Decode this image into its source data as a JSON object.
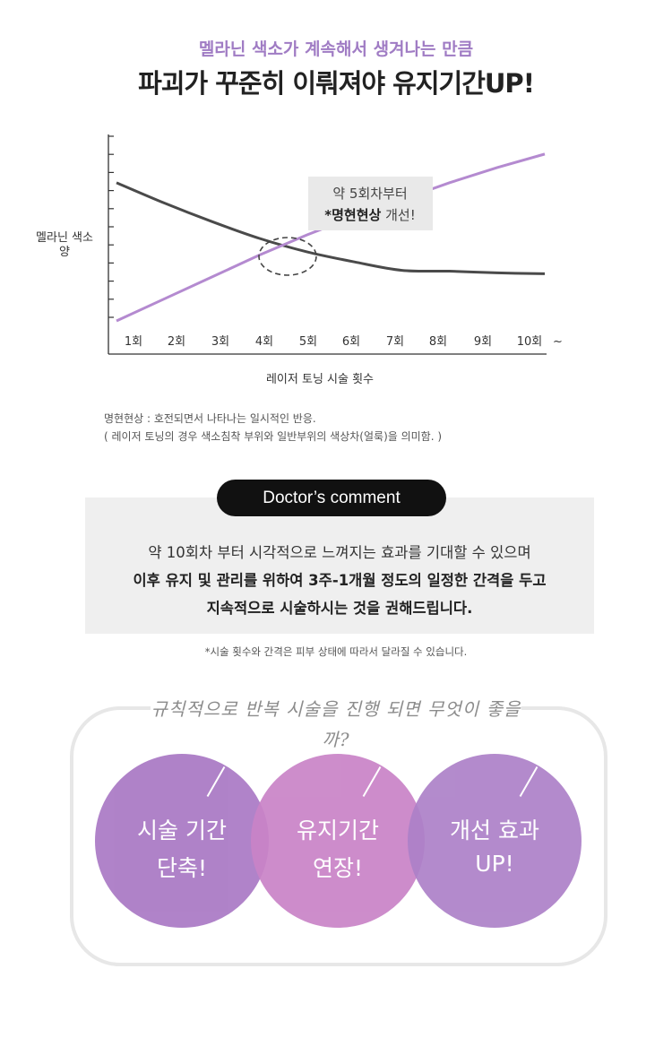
{
  "header": {
    "subtitle": "멜라닌 색소가 계속해서 생겨나는 만큼",
    "title": "파괴가 꾸준히 이뤄져야 유지기간UP!"
  },
  "chart_data": {
    "type": "line",
    "x": [
      "1회",
      "2회",
      "3회",
      "4회",
      "5회",
      "6회",
      "7회",
      "8회",
      "9회",
      "10회"
    ],
    "x_suffix": "~",
    "xlabel": "레이저 토닝 시술 횟수",
    "ylabel_line1": "멜라닌 색소",
    "ylabel_line2": "양",
    "y_ticks": 11,
    "ylim": [
      0,
      10
    ],
    "series": [
      {
        "color": "#4a4a4a",
        "values": [
          8.2,
          7.0,
          5.9,
          4.9,
          4.1,
          3.5,
          3.0,
          2.95,
          2.85,
          2.8
        ]
      },
      {
        "color": "#b48ad0",
        "values": [
          0.0,
          1.3,
          2.6,
          3.9,
          5.1,
          6.2,
          7.2,
          8.2,
          9.1,
          9.9
        ]
      }
    ],
    "annotation": {
      "line1": "약 5회차부터",
      "line2_bold": "*명현현상",
      "line2_rest": " 개선!"
    }
  },
  "footnote": {
    "line1": "명현현상 : 호전되면서 나타나는 일시적인 반응.",
    "line2": "( 레이저 토닝의 경우 색소침착 부위와 일반부위의 색상차(얼룩)을 의미함. )"
  },
  "doctor": {
    "pill": "Doctor’s comment",
    "line1": "약 10회차 부터 시각적으로 느껴지는 효과를 기대할 수 있으며",
    "line2": "이후 유지 및 관리를 위하여 3주-1개월 정도의 일정한 간격을 두고",
    "line3": "지속적으로 시술하시는 것을 권해드립니다."
  },
  "disclaimer": "*시술 횟수와 간격은 피부 상태에 따라서 달라질 수 있습니다.",
  "benefits": {
    "heading": "규칙적으로 반복 시술을 진행 되면 무엇이 좋을까?",
    "items": [
      {
        "line1": "시술 기간",
        "line2": "단축!",
        "color": "#a978c4"
      },
      {
        "line1": "유지기간",
        "line2": "연장!",
        "color": "#c983c7"
      },
      {
        "line1": "개선 효과",
        "line2": "UP!",
        "color": "#ad81c8"
      }
    ]
  }
}
